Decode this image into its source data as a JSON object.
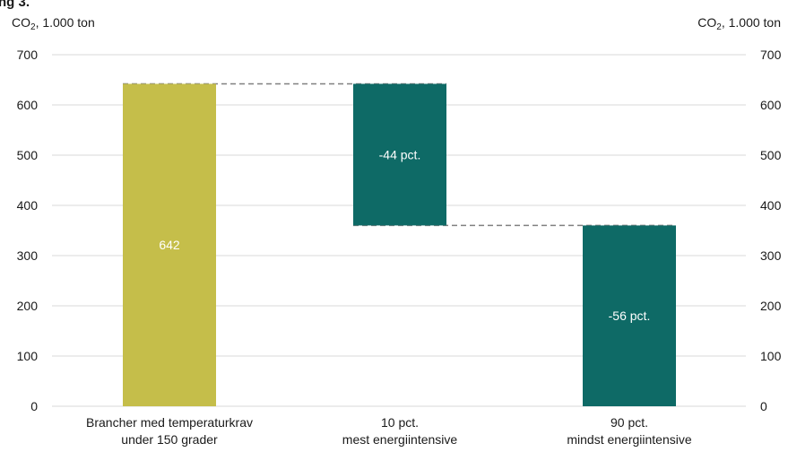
{
  "corner_title": "ng 3.",
  "unit_left": {
    "main": "CO",
    "sub": "2",
    "rest": ", 1.000 ton"
  },
  "unit_right": {
    "main": "CO",
    "sub": "2",
    "rest": ", 1.000 ton"
  },
  "colors": {
    "total_bar": "#c5be4a",
    "step_bar": "#0e6a66",
    "grid": "#d9d9d9",
    "connector": "#808080",
    "bar_label_text": "#ffffff"
  },
  "chart_data": {
    "type": "bar",
    "subtype": "waterfall",
    "ylim": [
      0,
      700
    ],
    "yticks": [
      0,
      100,
      200,
      300,
      400,
      500,
      600,
      700
    ],
    "ytick_labels": [
      "0",
      "100",
      "200",
      "300",
      "400",
      "500",
      "600",
      "700"
    ],
    "grid": true,
    "categories": [
      [
        "Brancher med temperaturkrav",
        "under 150 grader"
      ],
      [
        "10 pct.",
        "mest energiintensive"
      ],
      [
        "90 pct.",
        "mindst energiintensive"
      ]
    ],
    "bars": [
      {
        "kind": "total",
        "start": 0,
        "end": 642,
        "label": "642"
      },
      {
        "kind": "step",
        "start": 360,
        "end": 642,
        "label": "-44 pct."
      },
      {
        "kind": "step",
        "start": 0,
        "end": 360,
        "label": "-56 pct."
      }
    ],
    "connectors": [
      {
        "from_bar": 0,
        "to_bar": 1,
        "value": 642
      },
      {
        "from_bar": 1,
        "to_bar": 2,
        "value": 360
      }
    ]
  }
}
